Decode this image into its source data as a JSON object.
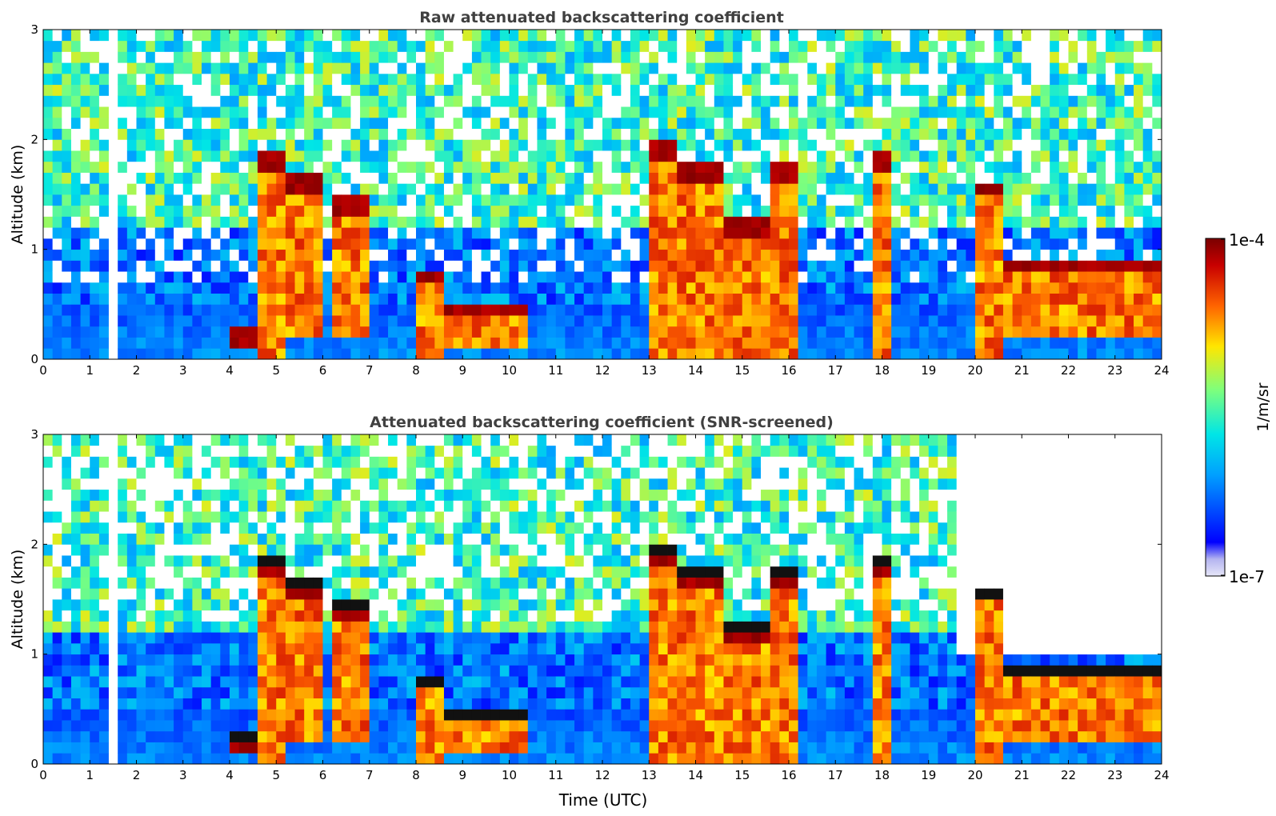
{
  "chart_data": [
    {
      "type": "heatmap",
      "title": "Raw attenuated backscattering coefficient",
      "xlabel": "",
      "ylabel": "Altitude (km)",
      "xlim": [
        0,
        24
      ],
      "ylim": [
        0,
        3
      ],
      "xticks": [
        "0",
        "1",
        "2",
        "3",
        "4",
        "5",
        "6",
        "7",
        "8",
        "9",
        "10",
        "11",
        "12",
        "13",
        "14",
        "15",
        "16",
        "17",
        "18",
        "19",
        "20",
        "21",
        "22",
        "23",
        "24"
      ],
      "yticks": [
        "0",
        "1",
        "2",
        "3"
      ],
      "screened": false,
      "no_data_intervals": [
        [
          1.43,
          1.55
        ]
      ]
    },
    {
      "type": "heatmap",
      "title": "Attenuated backscattering coefficient (SNR-screened)",
      "xlabel": "Time (UTC)",
      "ylabel": "Altitude (km)",
      "xlim": [
        0,
        24
      ],
      "ylim": [
        0,
        3
      ],
      "xticks": [
        "0",
        "1",
        "2",
        "3",
        "4",
        "5",
        "6",
        "7",
        "8",
        "9",
        "10",
        "11",
        "12",
        "13",
        "14",
        "15",
        "16",
        "17",
        "18",
        "19",
        "20",
        "21",
        "22",
        "23",
        "24"
      ],
      "yticks": [
        "0",
        "1",
        "2",
        "3"
      ],
      "screened": true,
      "no_data_intervals": [
        [
          1.43,
          1.55
        ]
      ]
    }
  ],
  "colorbar": {
    "label": "1/m/sr",
    "max_label": "1e-4",
    "min_label": "1e-7",
    "scale": "log",
    "colormap": "jet",
    "colors": [
      "#e6e6f8",
      "#0000ff",
      "#00c8ff",
      "#7dff7d",
      "#ffd700",
      "#ff6400",
      "#b40000",
      "#7a0000"
    ]
  }
}
